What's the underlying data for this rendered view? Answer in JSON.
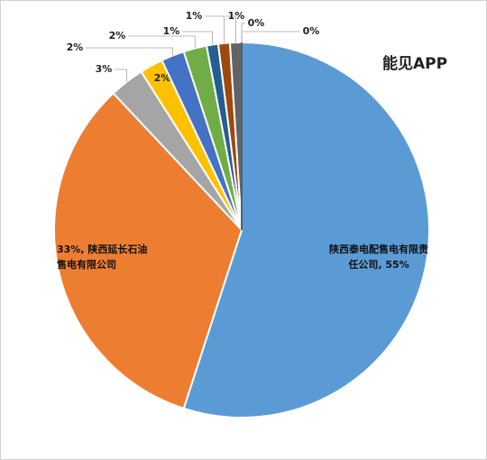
{
  "chart_data": {
    "type": "pie",
    "title": "能见APP",
    "values": [
      55,
      33,
      3,
      2,
      2,
      2,
      1,
      1,
      1,
      0,
      0
    ],
    "value_labels": [
      "陕西泰电配售电有限责任公司, 55%",
      "33%, 陕西延长石油售电有限公司",
      "3%",
      "2%",
      "2%",
      "2%",
      "1%",
      "1%",
      "1%",
      "0%",
      "0%"
    ],
    "colors": [
      "#5b9bd5",
      "#ed7d31",
      "#a5a5a5",
      "#ffc000",
      "#4472c4",
      "#70ad47",
      "#255e91",
      "#9e480e",
      "#636363",
      "#997300",
      "#264478"
    ]
  }
}
